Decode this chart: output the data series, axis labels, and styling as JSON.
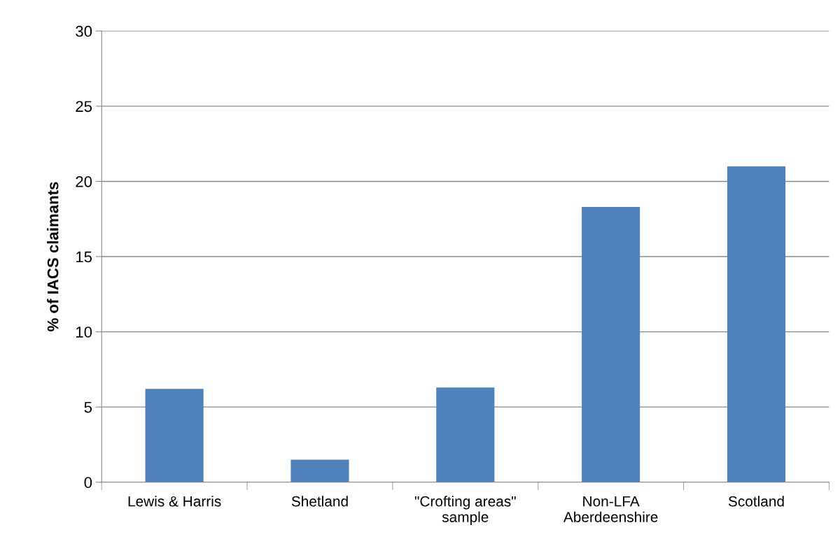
{
  "chart_data": {
    "type": "bar",
    "ylabel": "% of IACS claimants",
    "categories": [
      "Lewis & Harris",
      "Shetland",
      "\"Crofting areas\"\nsample",
      "Non-LFA\nAberdeenshire",
      "Scotland"
    ],
    "values": [
      6.2,
      1.5,
      6.3,
      18.3,
      21.0
    ],
    "color": "#4f81bd",
    "ylim": [
      0,
      30
    ],
    "yticks": [
      0,
      5,
      10,
      15,
      20,
      25,
      30
    ],
    "grid": "y"
  }
}
